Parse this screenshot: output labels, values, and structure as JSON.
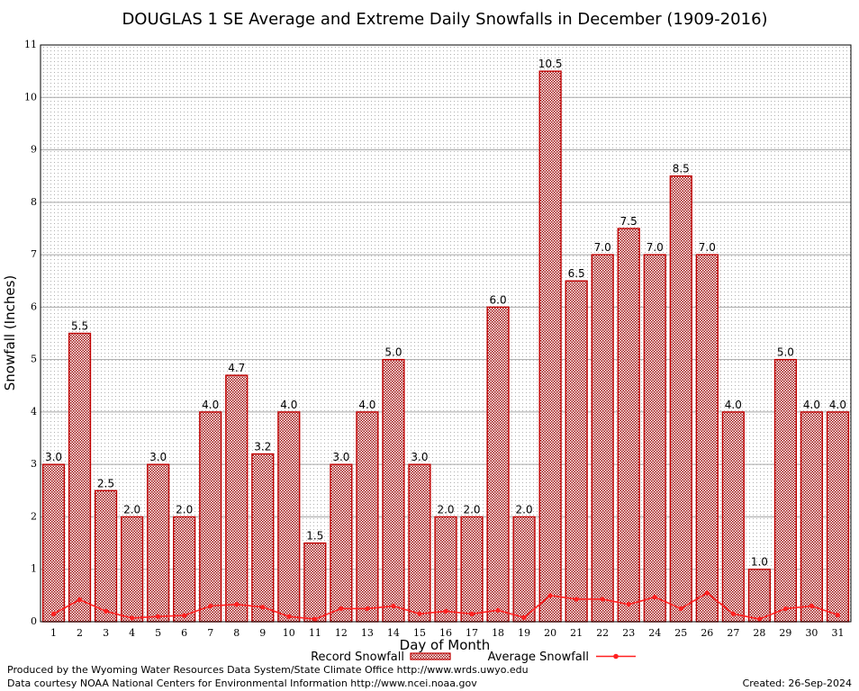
{
  "chart_data": {
    "type": "bar",
    "title": "DOUGLAS 1 SE Average and Extreme Daily Snowfalls in December (1909-2016)",
    "xlabel": "Day of Month",
    "ylabel": "Snowfall (Inches)",
    "ylim": [
      0,
      11
    ],
    "yticks": [
      "0",
      "1",
      "2",
      "3",
      "4",
      "5",
      "6",
      "7",
      "8",
      "9",
      "10",
      "11"
    ],
    "grid": true,
    "legend_position": "bottom-center",
    "categories": [
      "1",
      "2",
      "3",
      "4",
      "5",
      "6",
      "7",
      "8",
      "9",
      "10",
      "11",
      "12",
      "13",
      "14",
      "15",
      "16",
      "17",
      "18",
      "19",
      "20",
      "21",
      "22",
      "23",
      "24",
      "25",
      "26",
      "27",
      "28",
      "29",
      "30",
      "31"
    ],
    "series": [
      {
        "name": "Record Snowfall",
        "kind": "bar",
        "color": "#c00000",
        "values": [
          3.0,
          5.5,
          2.5,
          2.0,
          3.0,
          2.0,
          4.0,
          4.7,
          3.2,
          4.0,
          1.5,
          3.0,
          4.0,
          5.0,
          3.0,
          2.0,
          2.0,
          6.0,
          2.0,
          10.5,
          6.5,
          7.0,
          7.5,
          7.0,
          8.5,
          7.0,
          4.0,
          1.0,
          5.0,
          4.0,
          4.0
        ],
        "labels": [
          "3.0",
          "5.5",
          "2.5",
          "2.0",
          "3.0",
          "2.0",
          "4.0",
          "4.7",
          "3.2",
          "4.0",
          "1.5",
          "3.0",
          "4.0",
          "5.0",
          "3.0",
          "2.0",
          "2.0",
          "6.0",
          "2.0",
          "10.5",
          "6.5",
          "7.0",
          "7.5",
          "7.0",
          "8.5",
          "7.0",
          "4.0",
          "1.0",
          "5.0",
          "4.0",
          "4.0"
        ]
      },
      {
        "name": "Average Snowfall",
        "kind": "line",
        "color": "#ff2020",
        "values": [
          0.15,
          0.42,
          0.2,
          0.07,
          0.1,
          0.12,
          0.3,
          0.33,
          0.28,
          0.1,
          0.05,
          0.25,
          0.25,
          0.3,
          0.15,
          0.2,
          0.15,
          0.22,
          0.08,
          0.5,
          0.43,
          0.43,
          0.33,
          0.47,
          0.25,
          0.55,
          0.15,
          0.05,
          0.25,
          0.3,
          0.13
        ]
      }
    ]
  },
  "footer": {
    "produced_by": "Produced by the Wyoming Water Resources Data System/State Climate Office http://www.wrds.uwyo.edu",
    "courtesy": "Data courtesy NOAA National Centers for Environmental Information http://www.ncei.noaa.gov",
    "created": "Created:  26-Sep-2024"
  }
}
